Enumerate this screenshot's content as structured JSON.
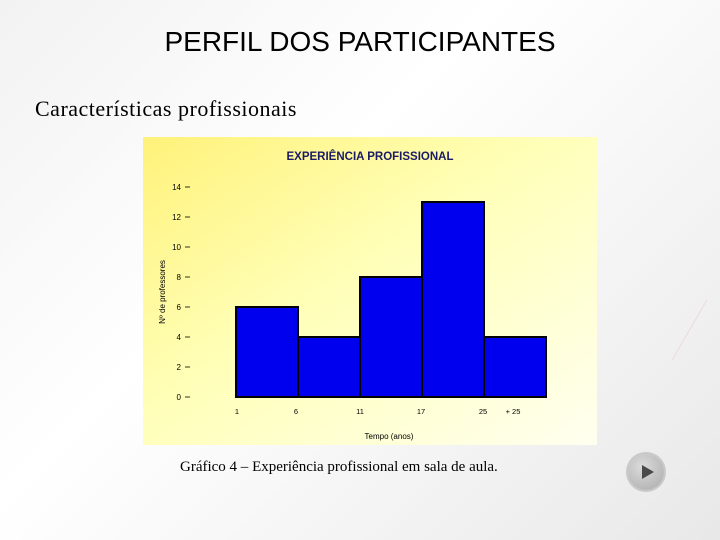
{
  "slide": {
    "title": "PERFIL DOS PARTICIPANTES",
    "subtitle": "Características profissionais",
    "caption_prefix": "Gráfico 4 –",
    "caption_text": " Experiência profissional em sala de aula.",
    "next_icon": "play-next-icon"
  },
  "chart_data": {
    "type": "bar",
    "title": "EXPERIÊNCIA PROFISSIONAL",
    "xlabel": "Tempo (anos)",
    "ylabel": "Nº de professores",
    "x_ticks": [
      "1",
      "6",
      "11",
      "17",
      "25",
      "+ 25"
    ],
    "values": [
      6,
      4,
      8,
      13,
      4
    ],
    "y_ticks": [
      0,
      2,
      4,
      6,
      8,
      10,
      12,
      14
    ],
    "ylim": [
      0,
      14
    ],
    "grid": false,
    "bar_color": "#0000ee",
    "background": "#ffff99"
  }
}
